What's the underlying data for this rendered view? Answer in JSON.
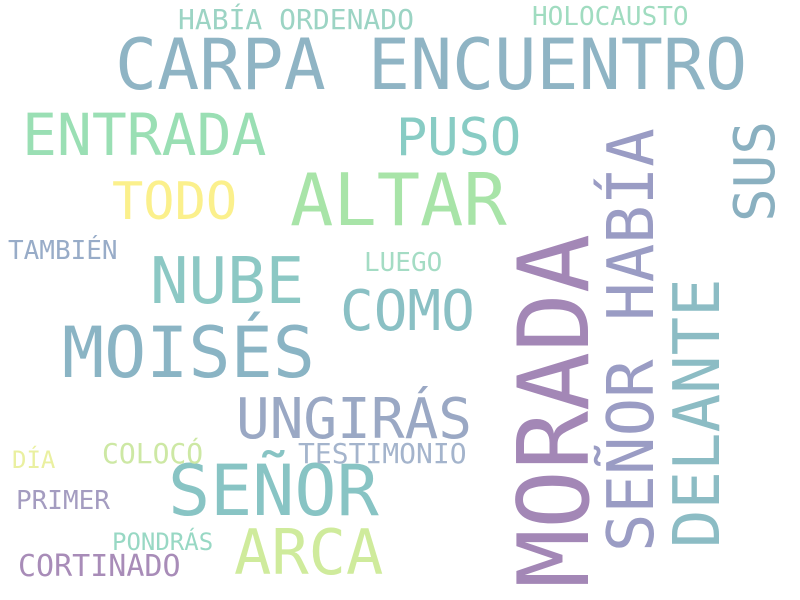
{
  "words": {
    "carpa_encuentro": {
      "text": "CARPA ENCUENTRO",
      "color": "#8fb4c4"
    },
    "entrada": {
      "text": "ENTRADA",
      "color": "#9adfb4"
    },
    "altar": {
      "text": "ALTAR",
      "color": "#a8e4a8"
    },
    "puso": {
      "text": "PUSO",
      "color": "#88ccc4"
    },
    "todo": {
      "text": "TODO",
      "color": "#fbf08c"
    },
    "nube": {
      "text": "NUBE",
      "color": "#8cc8c4"
    },
    "moises": {
      "text": "MOISÉS",
      "color": "#8ab4c4"
    },
    "como": {
      "text": "COMO",
      "color": "#8ac0c4"
    },
    "ungiras": {
      "text": "UNGIRÁS",
      "color": "#9aa8c4"
    },
    "senor": {
      "text": "SEÑOR",
      "color": "#88c4c4"
    },
    "arca": {
      "text": "ARCA",
      "color": "#cfeb9c"
    },
    "holocausto": {
      "text": "HOLOCAUSTO",
      "color": "#a0dcc0"
    },
    "habia_ordenado": {
      "text": "HABÍA ORDENADO",
      "color": "#9cd4c4"
    },
    "tambien": {
      "text": "TAMBIÉN",
      "color": "#98acc8"
    },
    "luego": {
      "text": "LUEGO",
      "color": "#a4dcc4"
    },
    "dia": {
      "text": "DÍA",
      "color": "#eaf0a0"
    },
    "coloco": {
      "text": "COLOCÓ",
      "color": "#cde8a4"
    },
    "testimonio": {
      "text": "TESTIMONIO",
      "color": "#a4b4cc"
    },
    "primer": {
      "text": "PRIMER",
      "color": "#a49cc0"
    },
    "pondras": {
      "text": "PONDRÁS",
      "color": "#98d8c4"
    },
    "cortinado": {
      "text": "CORTINADO",
      "color": "#a88cb8"
    },
    "sus": {
      "text": "SUS",
      "color": "#8ab0c0"
    },
    "senor_habia": {
      "text": "SEÑOR HABÍA",
      "color": "#9a9cc4"
    },
    "delante": {
      "text": "DELANTE",
      "color": "#8cbcc4"
    },
    "morada": {
      "text": "MORADA",
      "color": "#a387b6"
    }
  }
}
